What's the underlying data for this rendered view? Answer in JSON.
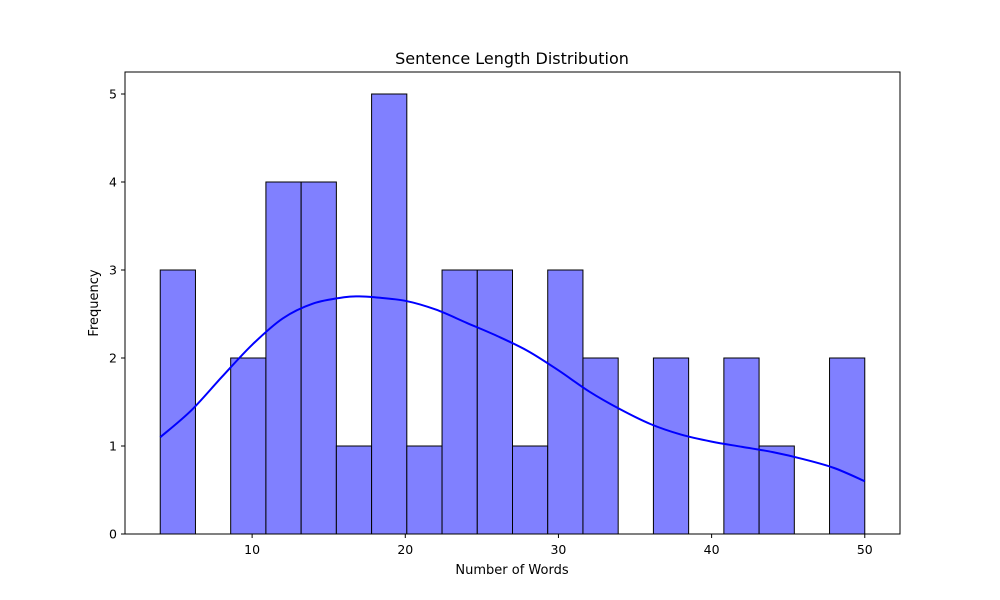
{
  "chart_data": {
    "type": "bar",
    "title": "Sentence Length Distribution",
    "xlabel": "Number of Words",
    "ylabel": "Frequency",
    "xlim": [
      1.7,
      52.3
    ],
    "ylim": [
      0,
      5.25
    ],
    "xticks": [
      10,
      20,
      30,
      40,
      50
    ],
    "yticks": [
      0,
      1,
      2,
      3,
      4,
      5
    ],
    "grid": false,
    "legend": "none",
    "bin_edges": [
      4,
      6.3,
      8.6,
      10.9,
      13.2,
      15.5,
      17.8,
      20.1,
      22.4,
      24.7,
      27,
      29.3,
      31.6,
      33.9,
      36.2,
      38.5,
      40.8,
      43.1,
      45.4,
      47.7,
      50
    ],
    "counts": [
      3,
      0,
      2,
      4,
      4,
      1,
      5,
      1,
      3,
      3,
      1,
      3,
      2,
      0,
      2,
      0,
      2,
      1,
      0,
      2
    ],
    "kde": {
      "x": [
        4,
        6,
        8,
        10,
        12,
        14,
        16,
        17,
        18,
        20,
        22,
        24,
        26,
        28,
        30,
        32,
        34,
        36,
        38,
        40,
        42,
        44,
        46,
        48,
        50
      ],
      "y": [
        1.1,
        1.4,
        1.78,
        2.15,
        2.45,
        2.62,
        2.69,
        2.7,
        2.69,
        2.65,
        2.55,
        2.4,
        2.25,
        2.08,
        1.86,
        1.62,
        1.42,
        1.25,
        1.13,
        1.05,
        0.99,
        0.93,
        0.85,
        0.75,
        0.6
      ]
    },
    "colors": {
      "bar_fill": "#8080ff",
      "bar_edge": "#000000",
      "kde_line": "#0000ff"
    }
  }
}
